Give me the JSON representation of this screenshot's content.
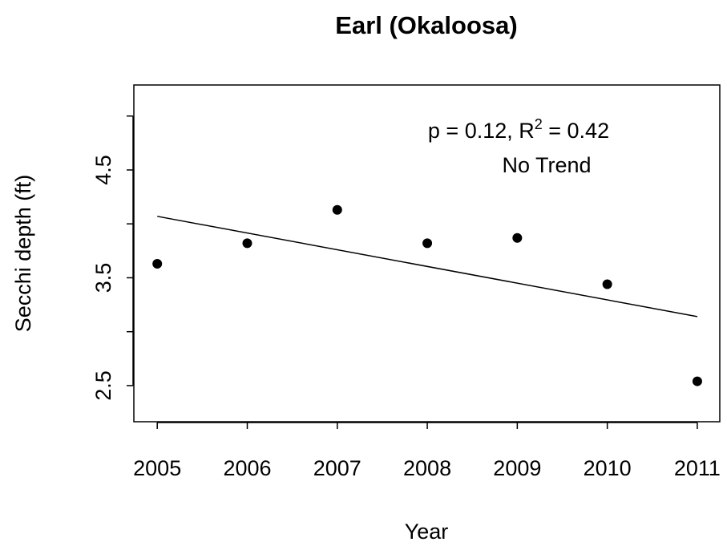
{
  "chart_data": {
    "type": "scatter",
    "title": "Earl (Okaloosa)",
    "x_label": "Year",
    "y_label": "Secchi depth (ft)",
    "x": [
      2005,
      2006,
      2007,
      2008,
      2009,
      2010,
      2011
    ],
    "values": [
      3.63,
      3.82,
      4.13,
      3.82,
      3.87,
      3.44,
      2.54
    ],
    "color": "#000000",
    "trend": {
      "x": [
        2005,
        2011
      ],
      "values": [
        4.07,
        3.14
      ],
      "color": "#000000"
    },
    "annotation": [
      "p = 0.12, R",
      "2",
      " = 0.42"
    ],
    "annotation_note": "No Trend",
    "xlim": [
      2004.74,
      2011.25
    ],
    "ylim": [
      2.165,
      5.288
    ],
    "xticks": [
      2005,
      2006,
      2007,
      2008,
      2009,
      2010,
      2011
    ],
    "yticks": [
      2.5,
      {
        "value": 3,
        "label": null
      },
      3.5,
      {
        "value": 4,
        "label": null
      },
      4.5,
      {
        "value": 5,
        "label": null
      }
    ],
    "grid": false
  }
}
